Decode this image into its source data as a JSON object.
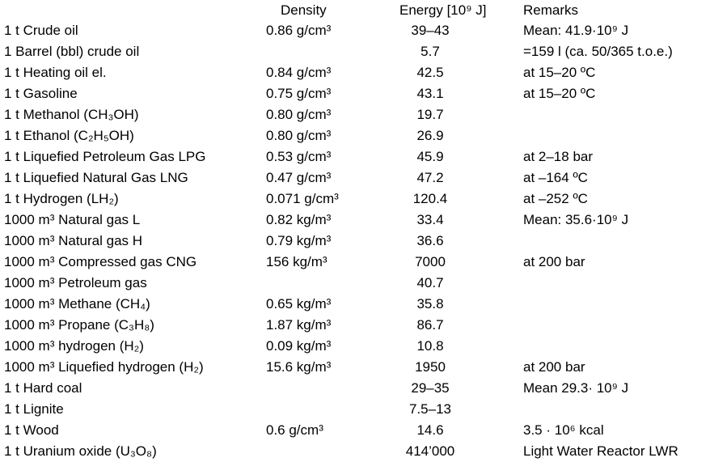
{
  "header": {
    "density": "Density",
    "energy": "Energy [10⁹ J]",
    "remarks": "Remarks"
  },
  "rows": [
    {
      "substance": "1 t Crude oil",
      "density": "0.86 g/cm³",
      "energy": "39–43",
      "remarks": "Mean: 41.9·10⁹ J"
    },
    {
      "substance": "1 Barrel (bbl) crude oil",
      "density": "",
      "energy": "5.7",
      "remarks": "=159 l (ca. 50/365 t.o.e.)"
    },
    {
      "substance": "1 t Heating oil el.",
      "density": "0.84 g/cm³",
      "energy": "42.5",
      "remarks": "at 15–20 ºC"
    },
    {
      "substance": "1 t Gasoline",
      "density": "0.75 g/cm³",
      "energy": "43.1",
      "remarks": "at 15–20 ºC"
    },
    {
      "substance": "1 t Methanol (CH₃OH)",
      "density": "0.80 g/cm³",
      "energy": "19.7",
      "remarks": ""
    },
    {
      "substance": "1 t Ethanol (C₂H₅OH)",
      "density": "0.80 g/cm³",
      "energy": "26.9",
      "remarks": ""
    },
    {
      "substance": "1 t Liquefied Petroleum Gas LPG",
      "density": "0.53 g/cm³",
      "energy": "45.9",
      "remarks": "at 2–18 bar"
    },
    {
      "substance": "1 t Liquefied Natural Gas LNG",
      "density": "0.47 g/cm³",
      "energy": "47.2",
      "remarks": "at –164 ºC"
    },
    {
      "substance": "1 t Hydrogen (LH₂)",
      "density": "0.071 g/cm³",
      "energy": "120.4",
      "remarks": "at –252 ºC"
    },
    {
      "substance": "1000 m³ Natural gas L",
      "density": "0.82 kg/m³",
      "energy": "33.4",
      "remarks": "Mean: 35.6·10⁹ J"
    },
    {
      "substance": "1000 m³ Natural gas H",
      "density": "0.79 kg/m³",
      "energy": "36.6",
      "remarks": ""
    },
    {
      "substance": "1000 m³ Compressed gas CNG",
      "density": "156 kg/m³",
      "energy": "7000",
      "remarks": "at 200 bar"
    },
    {
      "substance": "1000 m³ Petroleum gas",
      "density": "",
      "energy": "40.7",
      "remarks": ""
    },
    {
      "substance": "1000 m³ Methane (CH₄)",
      "density": "0.65 kg/m³",
      "energy": "35.8",
      "remarks": ""
    },
    {
      "substance": "1000 m³ Propane (C₃H₈)",
      "density": "1.87 kg/m³",
      "energy": "86.7",
      "remarks": ""
    },
    {
      "substance": "1000 m³ hydrogen (H₂)",
      "density": "0.09 kg/m³",
      "energy": "10.8",
      "remarks": ""
    },
    {
      "substance": "1000 m³ Liquefied hydrogen (H₂)",
      "density": "15.6 kg/m³",
      "energy": "1950",
      "remarks": "at 200 bar"
    },
    {
      "substance": "1 t Hard coal",
      "density": "",
      "energy": "29–35",
      "remarks": "Mean 29.3· 10⁹ J"
    },
    {
      "substance": "1 t Lignite",
      "density": "",
      "energy": "7.5–13",
      "remarks": ""
    },
    {
      "substance": "1 t Wood",
      "density": "0.6 g/cm³",
      "energy": "14.6",
      "remarks": "3.5 · 10⁶ kcal"
    },
    {
      "substance": "1 t Uranium oxide (U₃O₈)",
      "density": "",
      "energy": "414’000",
      "remarks": "Light Water Reactor LWR"
    }
  ]
}
